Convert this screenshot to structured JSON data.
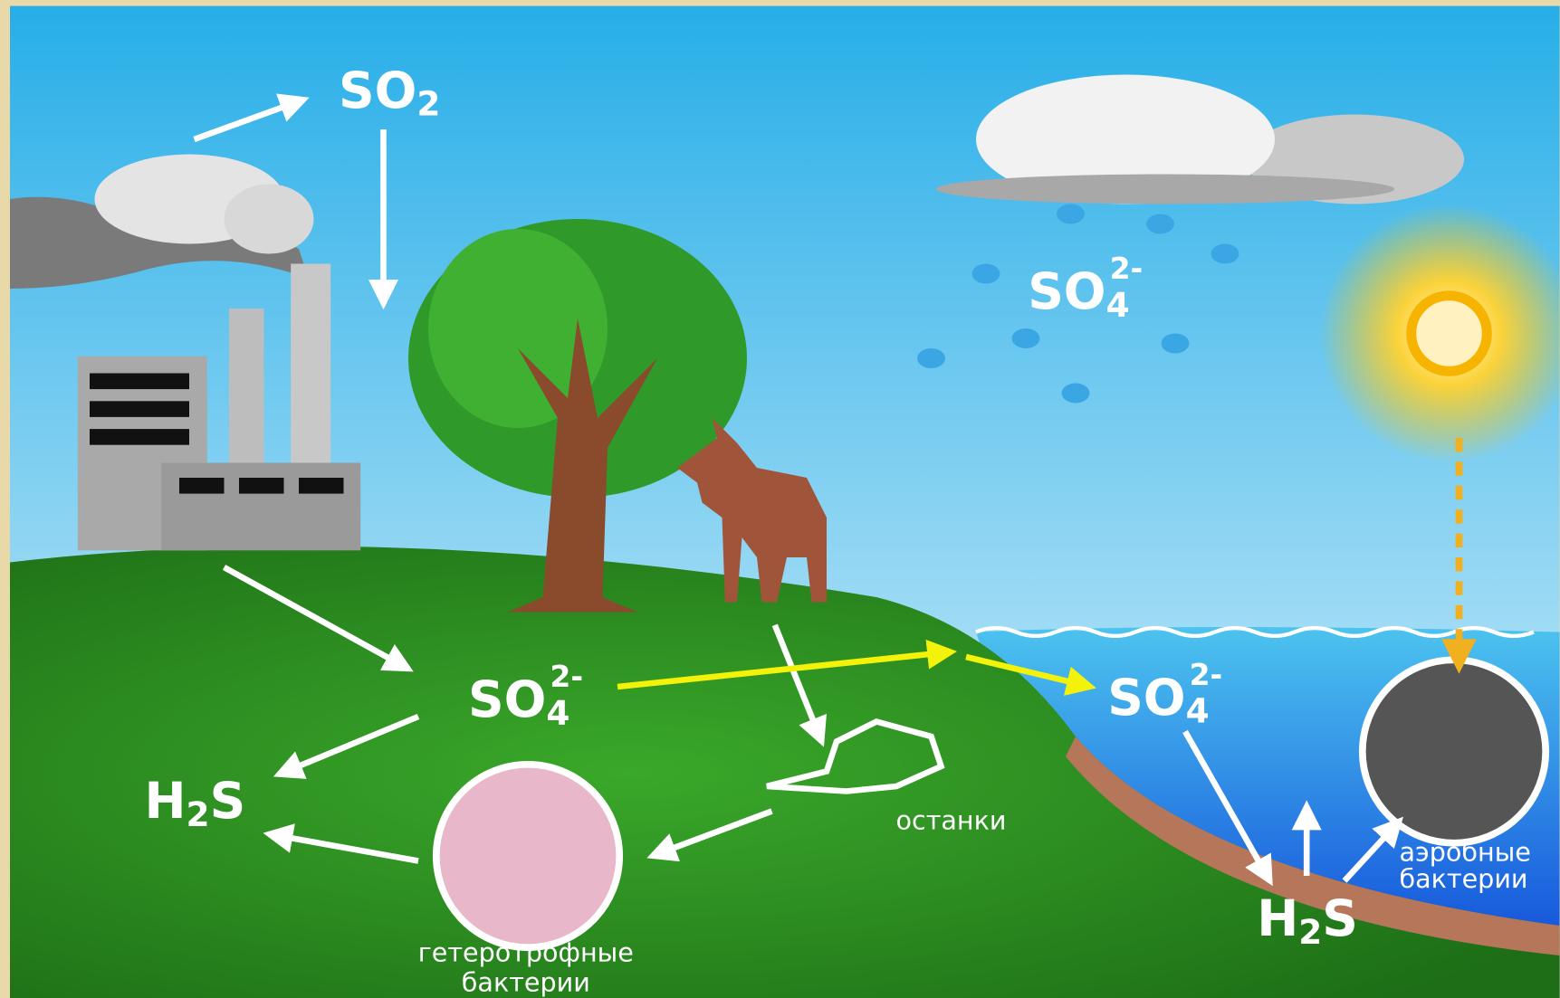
{
  "labels": {
    "so2": {
      "main": "SO",
      "sub": "2"
    },
    "so4_rain": {
      "main": "SO",
      "sub": "4",
      "sup": "2-"
    },
    "so4_land": {
      "main": "SO",
      "sub": "4",
      "sup": "2-"
    },
    "so4_water": {
      "main": "SO",
      "sub": "4",
      "sup": "2-"
    },
    "h2s_land": {
      "main": "H",
      "sub": "2",
      "tail": "S"
    },
    "h2s_water": {
      "main": "H",
      "sub": "2",
      "tail": "S"
    },
    "remains": "останки",
    "heterotrophic": [
      "гетеротрофные",
      "бактерии"
    ],
    "aerobic": [
      "аэробные",
      "бактерии"
    ]
  }
}
